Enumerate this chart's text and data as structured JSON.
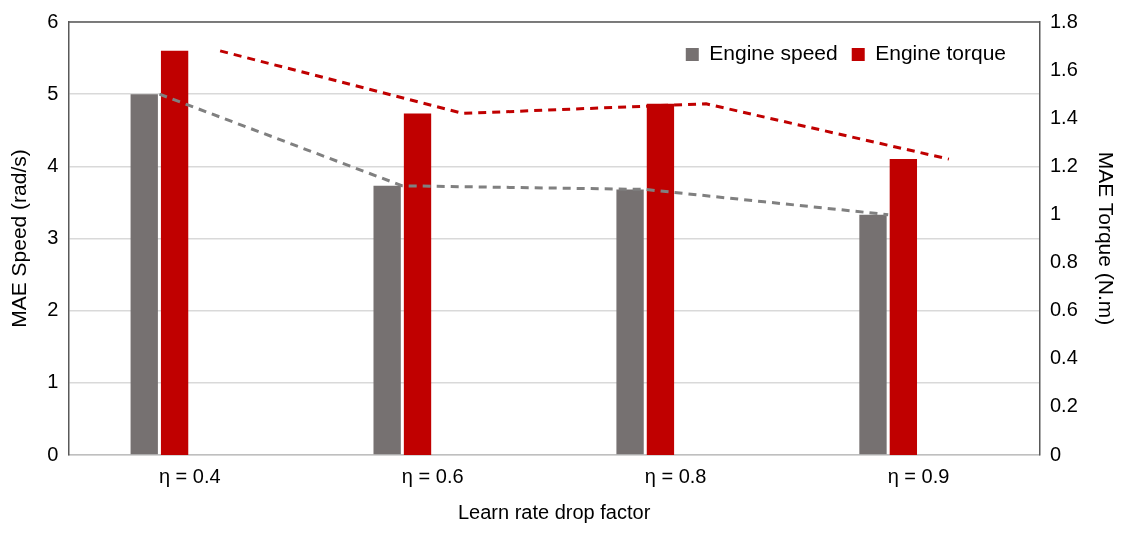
{
  "chart_data": {
    "type": "bar",
    "xlabel": "Learn rate drop factor",
    "ylabel": "MAE Speed (rad/s)",
    "y2label": "MAE Torque (N.m)",
    "categories": [
      "η = 0.4",
      "η = 0.6",
      "η = 0.8",
      "η = 0.9"
    ],
    "series": [
      {
        "name": "Engine speed",
        "color": "#767171",
        "values": [
          5.0,
          3.73,
          3.68,
          3.33
        ]
      },
      {
        "name": "Engine torque",
        "color": "#c00000",
        "values": [
          1.68,
          1.42,
          1.46,
          1.23
        ],
        "axis": "y2"
      },
      {
        "type": "line",
        "color": "#808080",
        "values": [
          5.0,
          3.73,
          3.68,
          3.33
        ],
        "line_style": "dashed",
        "marker": "none"
      },
      {
        "type": "line",
        "color": "#c00000",
        "values": [
          1.68,
          1.42,
          1.46,
          1.23
        ],
        "axis": "y2",
        "line_style": "dashed",
        "marker": "none"
      }
    ],
    "ylim": [
      0,
      6
    ],
    "yticks": [
      0,
      1,
      2,
      3,
      4,
      5,
      6
    ],
    "y2lim": [
      0,
      1.8
    ],
    "y2ticks": [
      0,
      0.2,
      0.4,
      0.6,
      0.8,
      1,
      1.2,
      1.4,
      1.6,
      1.8
    ],
    "grid": "y",
    "legend": "top right"
  }
}
